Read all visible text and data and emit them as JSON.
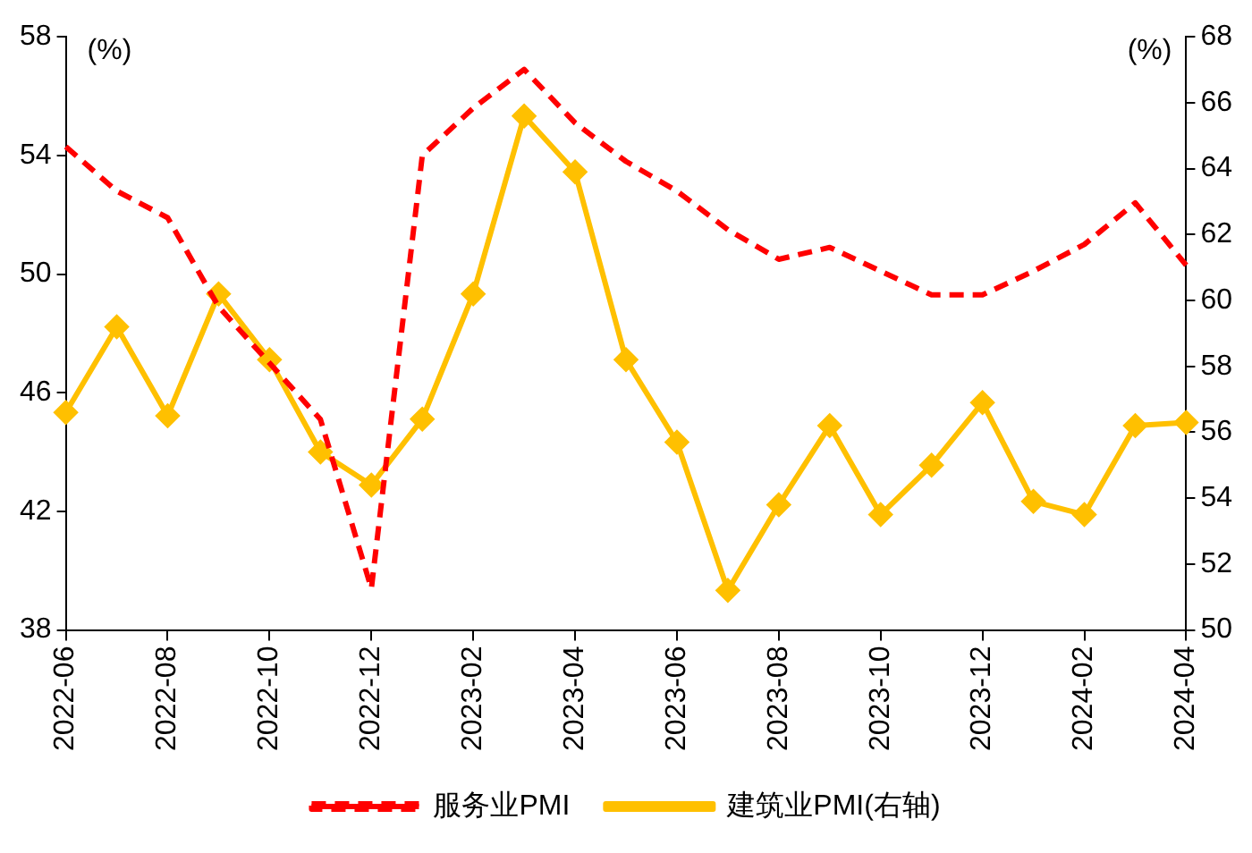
{
  "chart_data": {
    "type": "line",
    "ylabel": "(%)",
    "y2label": "(%)",
    "categories": [
      "2022-06",
      null,
      "2022-08",
      null,
      "2022-10",
      null,
      "2022-12",
      null,
      "2023-02",
      null,
      "2023-04",
      null,
      "2023-06",
      null,
      "2023-08",
      null,
      "2023-10",
      null,
      "2023-12",
      null,
      "2024-02",
      null,
      "2024-04"
    ],
    "series": [
      {
        "name": "服务业PMI",
        "color": "#ff0000",
        "line_style": "dashed",
        "marker": "none",
        "values": [
          54.3,
          52.8,
          51.9,
          48.9,
          47.0,
          45.1,
          39.4,
          54.0,
          55.6,
          56.9,
          55.1,
          53.8,
          52.8,
          51.5,
          50.5,
          50.9,
          50.1,
          49.3,
          49.3,
          50.1,
          51.0,
          52.4,
          50.3
        ]
      },
      {
        "name": "建筑业PMI(右轴)",
        "color": "#ffc000",
        "line_style": "solid",
        "marker": "diamond",
        "axis": "y2",
        "values": [
          56.6,
          59.2,
          56.5,
          60.2,
          58.2,
          55.4,
          54.4,
          56.4,
          60.2,
          65.6,
          63.9,
          58.2,
          55.7,
          51.2,
          53.8,
          56.2,
          53.5,
          55.0,
          56.9,
          53.9,
          53.5,
          56.2,
          56.3
        ]
      }
    ],
    "ylim": [
      38,
      58
    ],
    "yticks": [
      38,
      42,
      46,
      50,
      54,
      58
    ],
    "y2lim": [
      50,
      68
    ],
    "y2ticks": [
      50,
      52,
      54,
      56,
      58,
      60,
      62,
      64,
      66,
      68
    ],
    "grid": false,
    "legend": "bottom"
  }
}
